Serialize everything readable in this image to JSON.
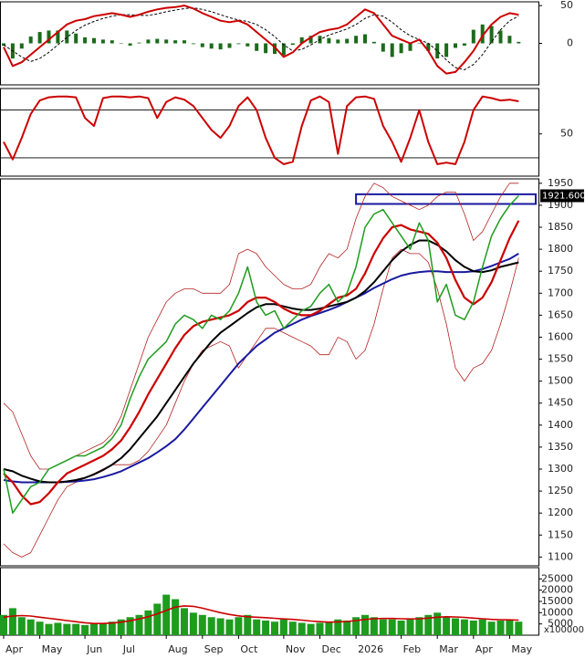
{
  "chart_data": [
    {
      "type": "line",
      "ylim": [
        -55,
        55
      ],
      "yticks": [
        50,
        0
      ],
      "series": [
        {
          "style": "bar",
          "color": "#1b6b1b",
          "width": 4,
          "values": [
            -3,
            -20,
            -7,
            9,
            15,
            17,
            17,
            17,
            13,
            8,
            7,
            5,
            4,
            0,
            -3,
            1,
            5,
            6,
            5,
            4,
            4,
            -1,
            -5,
            -7,
            -8,
            -6,
            -1,
            -4,
            -10,
            -13,
            -14,
            -16,
            -2,
            8,
            10,
            10,
            7,
            5,
            6,
            10,
            12,
            2,
            -11,
            -18,
            -13,
            -10,
            0,
            -10,
            -20,
            -18,
            -6,
            -3,
            18,
            25,
            23,
            17,
            10,
            2
          ]
        },
        {
          "style": "dashed",
          "color": "#000000",
          "width": 1,
          "values": [
            -2,
            -10,
            -18,
            -24,
            -20,
            -12,
            -2,
            8,
            17,
            24,
            29,
            33,
            36,
            38,
            38,
            37,
            37,
            39,
            42,
            44,
            46,
            47,
            45,
            42,
            38,
            34,
            31,
            29,
            25,
            18,
            9,
            -2,
            -10,
            -8,
            -2,
            5,
            11,
            15,
            19,
            25,
            33,
            38,
            36,
            28,
            18,
            10,
            5,
            0,
            -10,
            -22,
            -32,
            -35,
            -28,
            -15,
            2,
            18,
            30,
            36
          ]
        },
        {
          "style": "line",
          "color": "#cc0000",
          "width": 2,
          "values": [
            -5,
            -30,
            -25,
            -15,
            -5,
            5,
            15,
            25,
            30,
            32,
            36,
            38,
            40,
            38,
            35,
            38,
            42,
            45,
            47,
            48,
            50,
            46,
            40,
            35,
            30,
            28,
            30,
            25,
            15,
            5,
            -5,
            -18,
            -12,
            0,
            8,
            15,
            18,
            20,
            25,
            35,
            45,
            40,
            25,
            10,
            5,
            0,
            5,
            -10,
            -30,
            -40,
            -38,
            -25,
            -10,
            10,
            25,
            35,
            40,
            38
          ]
        }
      ]
    },
    {
      "type": "line",
      "ylim": [
        -3,
        107
      ],
      "yticks": [
        50
      ],
      "hlines": [
        80,
        20
      ],
      "series": [
        {
          "style": "line",
          "color": "#cc0000",
          "width": 2,
          "values": [
            40,
            18,
            45,
            75,
            92,
            96,
            97,
            97,
            96,
            70,
            60,
            95,
            97,
            97,
            96,
            97,
            95,
            70,
            90,
            96,
            93,
            85,
            70,
            55,
            45,
            60,
            85,
            96,
            80,
            45,
            20,
            12,
            15,
            60,
            92,
            97,
            90,
            25,
            85,
            96,
            97,
            94,
            60,
            40,
            15,
            45,
            80,
            40,
            12,
            14,
            12,
            40,
            80,
            97,
            95,
            92,
            93,
            91
          ]
        }
      ]
    },
    {
      "type": "line",
      "ylim": [
        1080,
        1960
      ],
      "yticks": [
        1100,
        1150,
        1200,
        1250,
        1300,
        1350,
        1400,
        1450,
        1500,
        1550,
        1600,
        1650,
        1700,
        1750,
        1800,
        1850,
        1900,
        1950
      ],
      "zone": [
        1903,
        1925
      ],
      "last_label": {
        "value": 1921.6,
        "label": "1921.600"
      },
      "series": [
        {
          "style": "line",
          "color": "#b22222",
          "width": 0.8,
          "values": [
            1450,
            1430,
            1380,
            1330,
            1300,
            1300,
            1310,
            1320,
            1330,
            1340,
            1350,
            1360,
            1380,
            1420,
            1480,
            1540,
            1600,
            1640,
            1680,
            1700,
            1710,
            1710,
            1700,
            1700,
            1700,
            1720,
            1790,
            1800,
            1790,
            1760,
            1740,
            1720,
            1710,
            1710,
            1720,
            1760,
            1790,
            1780,
            1800,
            1870,
            1920,
            1950,
            1940,
            1920,
            1910,
            1900,
            1890,
            1900,
            1920,
            1930,
            1930,
            1880,
            1820,
            1840,
            1880,
            1920,
            1950,
            1950
          ]
        },
        {
          "style": "line",
          "color": "#b22222",
          "width": 0.8,
          "values": [
            1130,
            1110,
            1100,
            1110,
            1150,
            1190,
            1230,
            1260,
            1270,
            1280,
            1290,
            1300,
            1310,
            1310,
            1310,
            1320,
            1340,
            1370,
            1400,
            1450,
            1500,
            1540,
            1570,
            1580,
            1590,
            1580,
            1530,
            1560,
            1590,
            1620,
            1620,
            1610,
            1600,
            1590,
            1580,
            1560,
            1560,
            1600,
            1590,
            1550,
            1570,
            1630,
            1710,
            1780,
            1800,
            1790,
            1790,
            1770,
            1710,
            1630,
            1530,
            1500,
            1530,
            1540,
            1570,
            1630,
            1700,
            1780
          ]
        },
        {
          "style": "line",
          "color": "#1a1aa0",
          "width": 2,
          "values": [
            1275,
            1272,
            1270,
            1270,
            1270,
            1270,
            1270,
            1271,
            1272,
            1274,
            1277,
            1282,
            1288,
            1295,
            1305,
            1315,
            1325,
            1338,
            1352,
            1368,
            1390,
            1415,
            1440,
            1465,
            1490,
            1515,
            1540,
            1560,
            1580,
            1595,
            1610,
            1620,
            1630,
            1640,
            1648,
            1655,
            1662,
            1670,
            1680,
            1690,
            1700,
            1712,
            1722,
            1732,
            1740,
            1745,
            1748,
            1750,
            1750,
            1748,
            1748,
            1748,
            1750,
            1755,
            1762,
            1770,
            1778,
            1790
          ]
        },
        {
          "style": "line",
          "color": "#000000",
          "width": 2,
          "values": [
            1300,
            1295,
            1285,
            1278,
            1272,
            1270,
            1270,
            1272,
            1275,
            1280,
            1288,
            1298,
            1310,
            1325,
            1345,
            1370,
            1395,
            1420,
            1450,
            1480,
            1510,
            1540,
            1565,
            1590,
            1610,
            1625,
            1640,
            1655,
            1668,
            1675,
            1675,
            1670,
            1665,
            1662,
            1662,
            1665,
            1670,
            1675,
            1680,
            1690,
            1705,
            1725,
            1750,
            1775,
            1795,
            1810,
            1820,
            1820,
            1810,
            1795,
            1775,
            1760,
            1750,
            1748,
            1752,
            1760,
            1765,
            1770
          ]
        },
        {
          "style": "line",
          "color": "#cc0000",
          "width": 2.2,
          "values": [
            1290,
            1270,
            1240,
            1220,
            1225,
            1245,
            1270,
            1290,
            1300,
            1310,
            1320,
            1330,
            1345,
            1365,
            1395,
            1430,
            1470,
            1505,
            1540,
            1575,
            1605,
            1625,
            1635,
            1640,
            1645,
            1650,
            1660,
            1680,
            1690,
            1690,
            1680,
            1665,
            1655,
            1650,
            1650,
            1660,
            1675,
            1690,
            1695,
            1710,
            1745,
            1790,
            1825,
            1850,
            1855,
            1845,
            1840,
            1835,
            1815,
            1780,
            1730,
            1690,
            1675,
            1690,
            1725,
            1775,
            1825,
            1865
          ]
        },
        {
          "style": "line",
          "color": "#1e9c1e",
          "width": 1.5,
          "values": [
            1300,
            1200,
            1230,
            1260,
            1270,
            1300,
            1310,
            1320,
            1330,
            1330,
            1340,
            1350,
            1370,
            1400,
            1460,
            1510,
            1550,
            1570,
            1590,
            1630,
            1650,
            1640,
            1620,
            1650,
            1640,
            1660,
            1700,
            1760,
            1680,
            1650,
            1660,
            1620,
            1640,
            1660,
            1670,
            1700,
            1720,
            1680,
            1700,
            1760,
            1850,
            1880,
            1890,
            1860,
            1830,
            1800,
            1860,
            1820,
            1680,
            1720,
            1650,
            1640,
            1680,
            1760,
            1830,
            1870,
            1900,
            1921.6
          ]
        }
      ]
    },
    {
      "type": "bar",
      "ylim": [
        0,
        30000
      ],
      "yticks": [
        25000,
        20000,
        15000,
        10000,
        5000
      ],
      "unit_label": "x100000",
      "categories": [
        "Apr",
        null,
        null,
        null,
        "May",
        null,
        null,
        null,
        null,
        "Jun",
        null,
        null,
        null,
        "Jul",
        null,
        null,
        null,
        null,
        "Aug",
        null,
        null,
        null,
        "Sep",
        null,
        null,
        null,
        "Oct",
        null,
        null,
        null,
        null,
        "Nov",
        null,
        null,
        null,
        "Dec",
        null,
        null,
        null,
        "2026",
        null,
        null,
        null,
        null,
        "Feb",
        null,
        null,
        null,
        "Mar",
        null,
        null,
        null,
        "Apr",
        null,
        null,
        null,
        "May",
        null
      ],
      "series": [
        {
          "style": "bar",
          "color": "#1e9c1e",
          "width": 8,
          "values": [
            9000,
            12000,
            8000,
            7000,
            6000,
            5000,
            5500,
            5000,
            5000,
            4500,
            5000,
            5500,
            6000,
            7000,
            8000,
            9000,
            11000,
            14000,
            18000,
            16000,
            12000,
            10000,
            9000,
            8000,
            7500,
            7000,
            8000,
            9000,
            7000,
            6500,
            6000,
            7000,
            6000,
            5500,
            5000,
            5500,
            6000,
            7000,
            6500,
            8000,
            9000,
            8000,
            7000,
            7000,
            6500,
            7000,
            8000,
            9000,
            10000,
            8000,
            7500,
            7000,
            6500,
            7000,
            6000,
            6500,
            7000,
            6000
          ]
        },
        {
          "style": "line",
          "color": "#cc0000",
          "width": 1.6,
          "values": [
            8000,
            8500,
            8700,
            8500,
            8000,
            7500,
            7000,
            6500,
            6000,
            5500,
            5200,
            5200,
            5400,
            5800,
            6400,
            7200,
            8200,
            9500,
            11000,
            12500,
            13000,
            12800,
            12000,
            11000,
            10000,
            9200,
            8600,
            8200,
            8000,
            7800,
            7500,
            7200,
            7000,
            6700,
            6300,
            6000,
            5800,
            5900,
            6100,
            6500,
            7000,
            7300,
            7400,
            7400,
            7300,
            7200,
            7300,
            7600,
            8000,
            8200,
            8100,
            7900,
            7600,
            7300,
            7000,
            6900,
            6800,
            6700
          ]
        }
      ]
    }
  ]
}
